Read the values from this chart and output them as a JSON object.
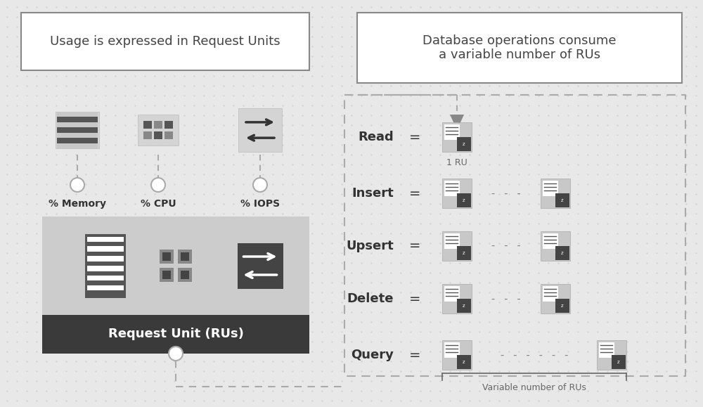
{
  "background_color": "#e8e8e8",
  "left_title": "Usage is expressed in Request Units",
  "right_title": "Database operations consume\na variable number of RUs",
  "title_fontsize": 13,
  "left_panel": {
    "ru_label": "Request Unit (RUs)",
    "metrics": [
      "% Memory",
      "% CPU",
      "% IOPS"
    ],
    "box_light": "#cccccc",
    "box_dark": "#3a3a3a"
  },
  "right_panel": {
    "operations": [
      "Read",
      "Insert",
      "Upsert",
      "Delete",
      "Query"
    ],
    "ru_label": "1 RU",
    "var_label": "Variable number of RUs"
  }
}
